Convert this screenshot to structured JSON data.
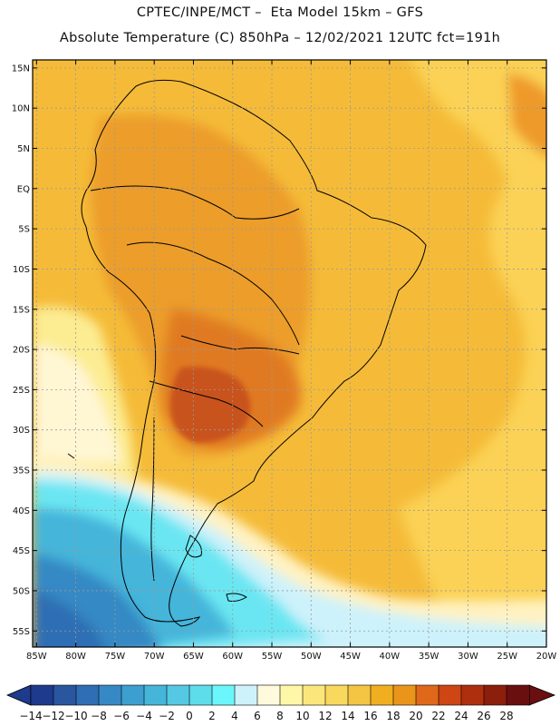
{
  "header": {
    "line1": "CPTEC/INPE/MCT –  Eta Model 15km – GFS",
    "line2": "Absolute Temperature (C) 850hPa – 12/02/2021 12UTC fct=191h"
  },
  "map": {
    "lat_labels": [
      "15N",
      "10N",
      "5N",
      "EQ",
      "5S",
      "10S",
      "15S",
      "20S",
      "25S",
      "30S",
      "35S",
      "40S",
      "45S",
      "50S",
      "55S"
    ],
    "lon_labels": [
      "85W",
      "80W",
      "75W",
      "70W",
      "65W",
      "60W",
      "55W",
      "50W",
      "45W",
      "40W",
      "35W",
      "30W",
      "25W",
      "20W"
    ],
    "lat_range": [
      -57,
      16
    ],
    "lon_range": [
      -85.5,
      -20
    ]
  },
  "colorbar": {
    "labels": [
      "-14",
      "-12",
      "-10",
      "-8",
      "-6",
      "-4",
      "-2",
      "0",
      "2",
      "4",
      "6",
      "8",
      "10",
      "12",
      "14",
      "16",
      "18",
      "20",
      "22",
      "24",
      "26",
      "28"
    ],
    "colors": [
      "#1e3a8c",
      "#2a56a0",
      "#2f6eb4",
      "#3689c4",
      "#3c9fcf",
      "#45b5da",
      "#55c8e4",
      "#5ddcea",
      "#6af6fa",
      "#cdf2fb",
      "#fffadc",
      "#fff7a8",
      "#fbe67c",
      "#f9d85e",
      "#f4c443",
      "#f0af20",
      "#ea951a",
      "#e0681a",
      "#cd4614",
      "#ae2f0d",
      "#8c1e0c",
      "#6a0f10"
    ]
  },
  "chart_data": {
    "type": "heatmap",
    "title": "Absolute Temperature (C) 850hPa",
    "units": "C",
    "x_range_lon": [
      -85,
      -20
    ],
    "y_range_lat": [
      -56,
      15
    ],
    "color_levels": [
      -14,
      -12,
      -10,
      -8,
      -6,
      -4,
      -2,
      0,
      2,
      4,
      6,
      8,
      10,
      12,
      14,
      16,
      18,
      20,
      22,
      24,
      26,
      28
    ]
  }
}
